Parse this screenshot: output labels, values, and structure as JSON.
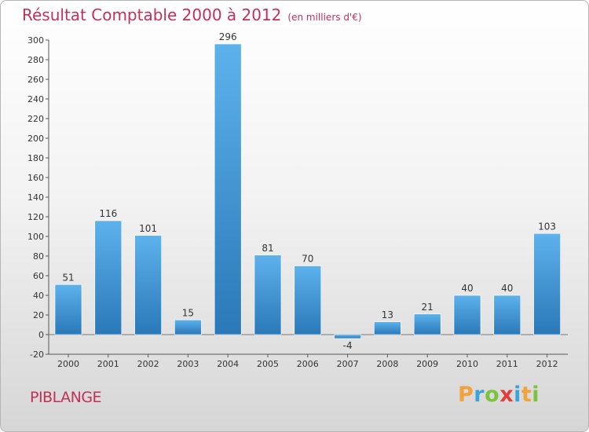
{
  "header": {
    "title": "Résultat Comptable 2000 à 2012",
    "subtitle": "(en milliers d'€)"
  },
  "footer": {
    "commune": "PIBLANGE",
    "logo_letters": [
      "P",
      "r",
      "o",
      "x",
      "i",
      "t",
      "i"
    ],
    "logo_colors": [
      "#f2a23a",
      "#3aa3d9",
      "#7cc23c",
      "#e23d3d",
      "#3aa3d9",
      "#f2a23a",
      "#7cc23c"
    ]
  },
  "colors": {
    "accent": "#c2305a",
    "bar_top": "#5db2ec",
    "bar_bottom": "#2a78b8"
  },
  "chart_data": {
    "type": "bar",
    "title": "Résultat Comptable 2000 à 2012",
    "subtitle": "(en milliers d'€)",
    "xlabel": "",
    "ylabel": "",
    "ylim": [
      -20,
      300
    ],
    "yticks": [
      -20,
      0,
      20,
      40,
      60,
      80,
      100,
      120,
      140,
      160,
      180,
      200,
      220,
      240,
      260,
      280,
      300
    ],
    "grid": false,
    "categories": [
      "2000",
      "2001",
      "2002",
      "2003",
      "2004",
      "2005",
      "2006",
      "2007",
      "2008",
      "2009",
      "2010",
      "2011",
      "2012"
    ],
    "values": [
      51,
      116,
      101,
      15,
      296,
      81,
      70,
      -4,
      13,
      21,
      40,
      40,
      103
    ]
  }
}
